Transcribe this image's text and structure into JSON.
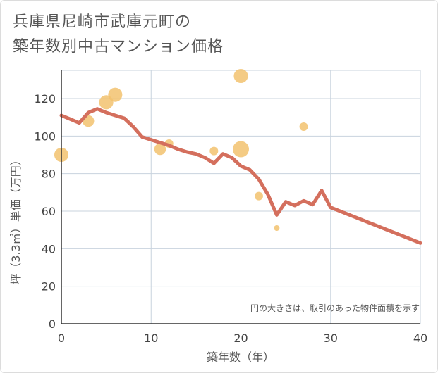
{
  "title_lines": [
    "兵庫県尼崎市武庫元町の",
    "築年数別中古マンション価格"
  ],
  "chart_data": {
    "type": "scatter+line",
    "title": "兵庫県尼崎市武庫元町の築年数別中古マンション価格",
    "xlabel": "築年数（年）",
    "ylabel": "坪（3.3㎡）単価（万円）",
    "xlim": [
      0,
      40
    ],
    "ylim": [
      0,
      135
    ],
    "xticks": [
      0,
      10,
      20,
      30,
      40
    ],
    "yticks": [
      0,
      20,
      40,
      60,
      80,
      100,
      120
    ],
    "grid": true,
    "note": "円の大きさは、取引のあった物件面積を示す",
    "colors": {
      "line": "#d46f5d",
      "bubble": "#f2c26e",
      "grid": "#c8d3de",
      "axis": "#333333"
    },
    "bubbles": [
      {
        "x": 0,
        "y": 90,
        "size": 3
      },
      {
        "x": 3,
        "y": 108,
        "size": 2
      },
      {
        "x": 5,
        "y": 118,
        "size": 3
      },
      {
        "x": 6,
        "y": 122,
        "size": 3
      },
      {
        "x": 11,
        "y": 93,
        "size": 2
      },
      {
        "x": 12,
        "y": 96,
        "size": 1
      },
      {
        "x": 17,
        "y": 92,
        "size": 1
      },
      {
        "x": 20,
        "y": 132,
        "size": 3
      },
      {
        "x": 20,
        "y": 93,
        "size": 4
      },
      {
        "x": 22,
        "y": 68,
        "size": 1
      },
      {
        "x": 24,
        "y": 51,
        "size": 0.4
      },
      {
        "x": 27,
        "y": 105,
        "size": 1
      }
    ],
    "line": {
      "x": [
        0,
        1,
        2,
        3,
        4,
        5,
        6,
        7,
        8,
        9,
        10,
        11,
        12,
        13,
        14,
        15,
        16,
        17,
        18,
        19,
        20,
        21,
        22,
        23,
        24,
        25,
        26,
        27,
        28,
        29,
        30,
        40
      ],
      "y": [
        111,
        109,
        107,
        112.5,
        114.5,
        112.5,
        111,
        109.5,
        105,
        99.5,
        98,
        96.5,
        95,
        93,
        91.5,
        90.5,
        88.5,
        85.5,
        90.5,
        88.5,
        84,
        82,
        77,
        69,
        58,
        65,
        63,
        65.5,
        63.5,
        71,
        62,
        43
      ]
    }
  }
}
